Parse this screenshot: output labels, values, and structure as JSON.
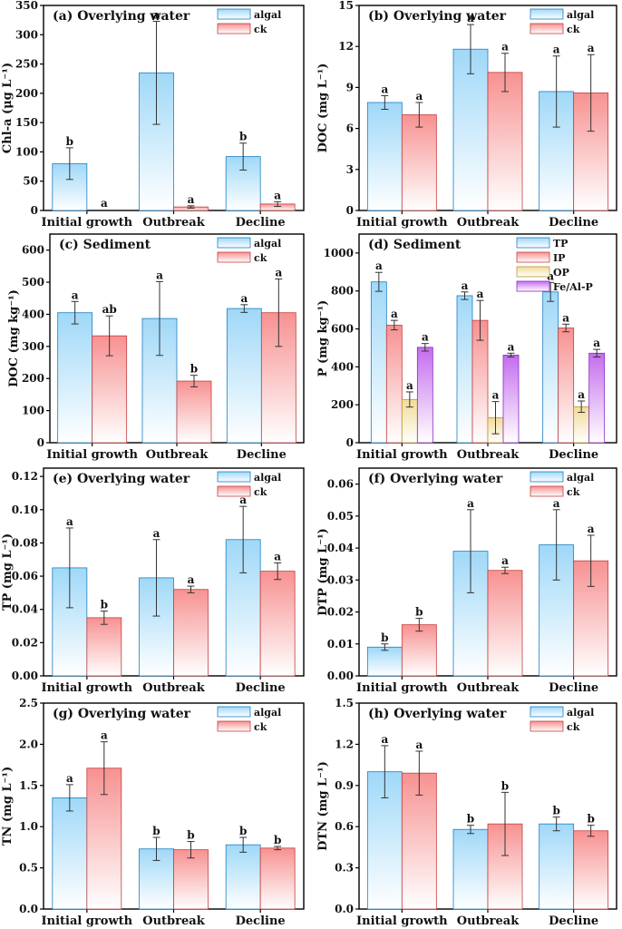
{
  "colors": {
    "algal_top": "#9fd8f8",
    "algal_bottom": "#ffffff",
    "algal_edge": "#1c7fc3",
    "ck_top": "#f79191",
    "ck_bottom": "#ffffff",
    "ck_edge": "#c43f3f",
    "op_top": "#f1dc97",
    "op_bottom": "#ffffff",
    "op_edge": "#b49a3c",
    "fe_top": "#c46cee",
    "fe_bottom": "#ffffff",
    "fe_edge": "#8a2bbf",
    "axis": "#000000",
    "error": "#333333"
  },
  "chart_data": [
    {
      "type": "bar",
      "title": "(a) Overlying water",
      "ylabel": "Chl-a (μg L⁻¹)",
      "ylim": [
        0,
        350
      ],
      "yticks": [
        "0",
        "50",
        "100",
        "150",
        "200",
        "250",
        "300",
        "350"
      ],
      "categories": [
        "Initial growth",
        "Outbreak",
        "Decline"
      ],
      "legend_position": "top-right",
      "series": [
        {
          "name": "algal",
          "color": "algal",
          "values": [
            80,
            235,
            92
          ],
          "errors": [
            27,
            88,
            23
          ],
          "sig": [
            "b",
            "a",
            "b"
          ]
        },
        {
          "name": "ck",
          "color": "ck",
          "values": [
            0,
            6,
            11
          ],
          "errors": [
            0,
            2,
            4
          ],
          "sig": [
            "a",
            "a",
            "a"
          ]
        }
      ]
    },
    {
      "type": "bar",
      "title": "(b) Overlying water",
      "ylabel": "DOC (mg L⁻¹)",
      "ylim": [
        0,
        15
      ],
      "yticks": [
        "0",
        "3",
        "6",
        "9",
        "12",
        "15"
      ],
      "categories": [
        "Initial growth",
        "Outbreak",
        "Decline"
      ],
      "legend_position": "top-right",
      "series": [
        {
          "name": "algal",
          "color": "algal",
          "values": [
            7.9,
            11.8,
            8.7
          ],
          "errors": [
            0.5,
            1.8,
            2.6
          ],
          "sig": [
            "a",
            "a",
            "a"
          ]
        },
        {
          "name": "ck",
          "color": "ck",
          "values": [
            7.0,
            10.1,
            8.6
          ],
          "errors": [
            0.9,
            1.4,
            2.8
          ],
          "sig": [
            "a",
            "a",
            "a"
          ]
        }
      ]
    },
    {
      "type": "bar",
      "title": "(c) Sediment",
      "ylabel": "DOC (mg kg⁻¹)",
      "ylim": [
        0,
        650
      ],
      "yticks": [
        "0",
        "100",
        "200",
        "300",
        "400",
        "500",
        "600"
      ],
      "categories": [
        "Initial growth",
        "Outbreak",
        "Decline"
      ],
      "legend_position": "top-right",
      "series": [
        {
          "name": "algal",
          "color": "algal",
          "values": [
            405,
            387,
            418
          ],
          "errors": [
            35,
            115,
            12
          ],
          "sig": [
            "a",
            "a",
            "a"
          ]
        },
        {
          "name": "ck",
          "color": "ck",
          "values": [
            333,
            192,
            405
          ],
          "errors": [
            62,
            18,
            105
          ],
          "sig": [
            "ab",
            "b",
            "a"
          ]
        }
      ]
    },
    {
      "type": "bar",
      "title": "(d) Sediment",
      "ylabel": "P (mg kg⁻¹)",
      "ylim": [
        0,
        1100
      ],
      "yticks": [
        "0",
        "200",
        "400",
        "600",
        "800",
        "1000"
      ],
      "categories": [
        "Initial growth",
        "Outbreak",
        "Decline"
      ],
      "legend_position": "top-right",
      "series": [
        {
          "name": "TP",
          "color": "algal",
          "values": [
            848,
            775,
            795
          ],
          "errors": [
            50,
            20,
            50
          ],
          "sig": [
            "a",
            "a",
            "a"
          ]
        },
        {
          "name": "IP",
          "color": "ck",
          "values": [
            620,
            645,
            605
          ],
          "errors": [
            25,
            105,
            20
          ],
          "sig": [
            "a",
            "a",
            "a"
          ]
        },
        {
          "name": "OP",
          "color": "op",
          "values": [
            228,
            132,
            190
          ],
          "errors": [
            40,
            85,
            30
          ],
          "sig": [
            "a",
            "a",
            "a"
          ]
        },
        {
          "name": "Fe/Al-P",
          "color": "fe",
          "values": [
            503,
            462,
            472
          ],
          "errors": [
            20,
            10,
            20
          ],
          "sig": [
            "a",
            "a",
            "a"
          ]
        }
      ]
    },
    {
      "type": "bar",
      "title": "(e) Overlying water",
      "ylabel": "TP (mg L⁻¹)",
      "ylim": [
        0,
        0.125
      ],
      "yticks": [
        "0.00",
        "0.02",
        "0.04",
        "0.06",
        "0.08",
        "0.10",
        "0.12"
      ],
      "categories": [
        "Initial growth",
        "Outbreak",
        "Decline"
      ],
      "legend_position": "top-right",
      "series": [
        {
          "name": "algal",
          "color": "algal",
          "values": [
            0.065,
            0.059,
            0.082
          ],
          "errors": [
            0.024,
            0.023,
            0.02
          ],
          "sig": [
            "a",
            "a",
            "a"
          ]
        },
        {
          "name": "ck",
          "color": "ck",
          "values": [
            0.035,
            0.052,
            0.063
          ],
          "errors": [
            0.004,
            0.002,
            0.005
          ],
          "sig": [
            "b",
            "a",
            "a"
          ]
        }
      ]
    },
    {
      "type": "bar",
      "title": "(f) Overlying water",
      "ylabel": "DTP (mg L⁻¹)",
      "ylim": [
        0,
        0.065
      ],
      "yticks": [
        "0.00",
        "0.01",
        "0.02",
        "0.03",
        "0.04",
        "0.05",
        "0.06"
      ],
      "categories": [
        "Initial growth",
        "Outbreak",
        "Decline"
      ],
      "legend_position": "top-right",
      "series": [
        {
          "name": "algal",
          "color": "algal",
          "values": [
            0.009,
            0.039,
            0.041
          ],
          "errors": [
            0.001,
            0.013,
            0.011
          ],
          "sig": [
            "b",
            "a",
            "a"
          ]
        },
        {
          "name": "ck",
          "color": "ck",
          "values": [
            0.016,
            0.033,
            0.036
          ],
          "errors": [
            0.002,
            0.001,
            0.008
          ],
          "sig": [
            "b",
            "a",
            "a"
          ]
        }
      ]
    },
    {
      "type": "bar",
      "title": "(g) Overlying water",
      "ylabel": "TN (mg L⁻¹)",
      "ylim": [
        0,
        2.5
      ],
      "yticks": [
        "0.0",
        "0.5",
        "1.0",
        "1.5",
        "2.0",
        "2.5"
      ],
      "categories": [
        "Initial growth",
        "Outbreak",
        "Decline"
      ],
      "legend_position": "top-right",
      "series": [
        {
          "name": "algal",
          "color": "algal",
          "values": [
            1.35,
            0.73,
            0.78
          ],
          "errors": [
            0.16,
            0.14,
            0.09
          ],
          "sig": [
            "a",
            "b",
            "b"
          ]
        },
        {
          "name": "ck",
          "color": "ck",
          "values": [
            1.71,
            0.72,
            0.74
          ],
          "errors": [
            0.32,
            0.1,
            0.02
          ],
          "sig": [
            "a",
            "b",
            "b"
          ]
        }
      ]
    },
    {
      "type": "bar",
      "title": "(h) Overlying water",
      "ylabel": "DTN (mg L⁻¹)",
      "ylim": [
        0,
        1.5
      ],
      "yticks": [
        "0.0",
        "0.3",
        "0.6",
        "0.9",
        "1.2",
        "1.5"
      ],
      "categories": [
        "Initial growth",
        "Outbreak",
        "Decline"
      ],
      "legend_position": "top-right",
      "series": [
        {
          "name": "algal",
          "color": "algal",
          "values": [
            1.0,
            0.58,
            0.62
          ],
          "errors": [
            0.19,
            0.03,
            0.05
          ],
          "sig": [
            "a",
            "b",
            "b"
          ]
        },
        {
          "name": "ck",
          "color": "ck",
          "values": [
            0.99,
            0.62,
            0.57
          ],
          "errors": [
            0.16,
            0.23,
            0.04
          ],
          "sig": [
            "a",
            "b",
            "b"
          ]
        }
      ]
    }
  ]
}
